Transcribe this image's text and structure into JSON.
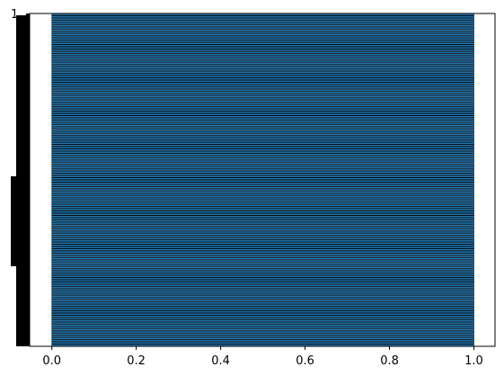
{
  "chart_data": {
    "type": "bar",
    "orientation": "horizontal",
    "title": "",
    "xlabel": "",
    "ylabel": "",
    "xlim": [
      -0.0525,
      1.05
    ],
    "x_ticks": [
      0.0,
      0.2,
      0.4,
      0.6,
      0.8,
      1.0
    ],
    "x_tick_labels": [
      "0.0",
      "0.2",
      "0.4",
      "0.6",
      "0.8",
      "1.0"
    ],
    "bar_count": 150,
    "bar_value": 1.0,
    "bar_color": "#1f77b4",
    "edge_color": "#000000",
    "grid": false,
    "legend": "none",
    "y_tick_labels_legible": false,
    "y_tick_labels_partial": [
      "1",
      "1"
    ]
  }
}
